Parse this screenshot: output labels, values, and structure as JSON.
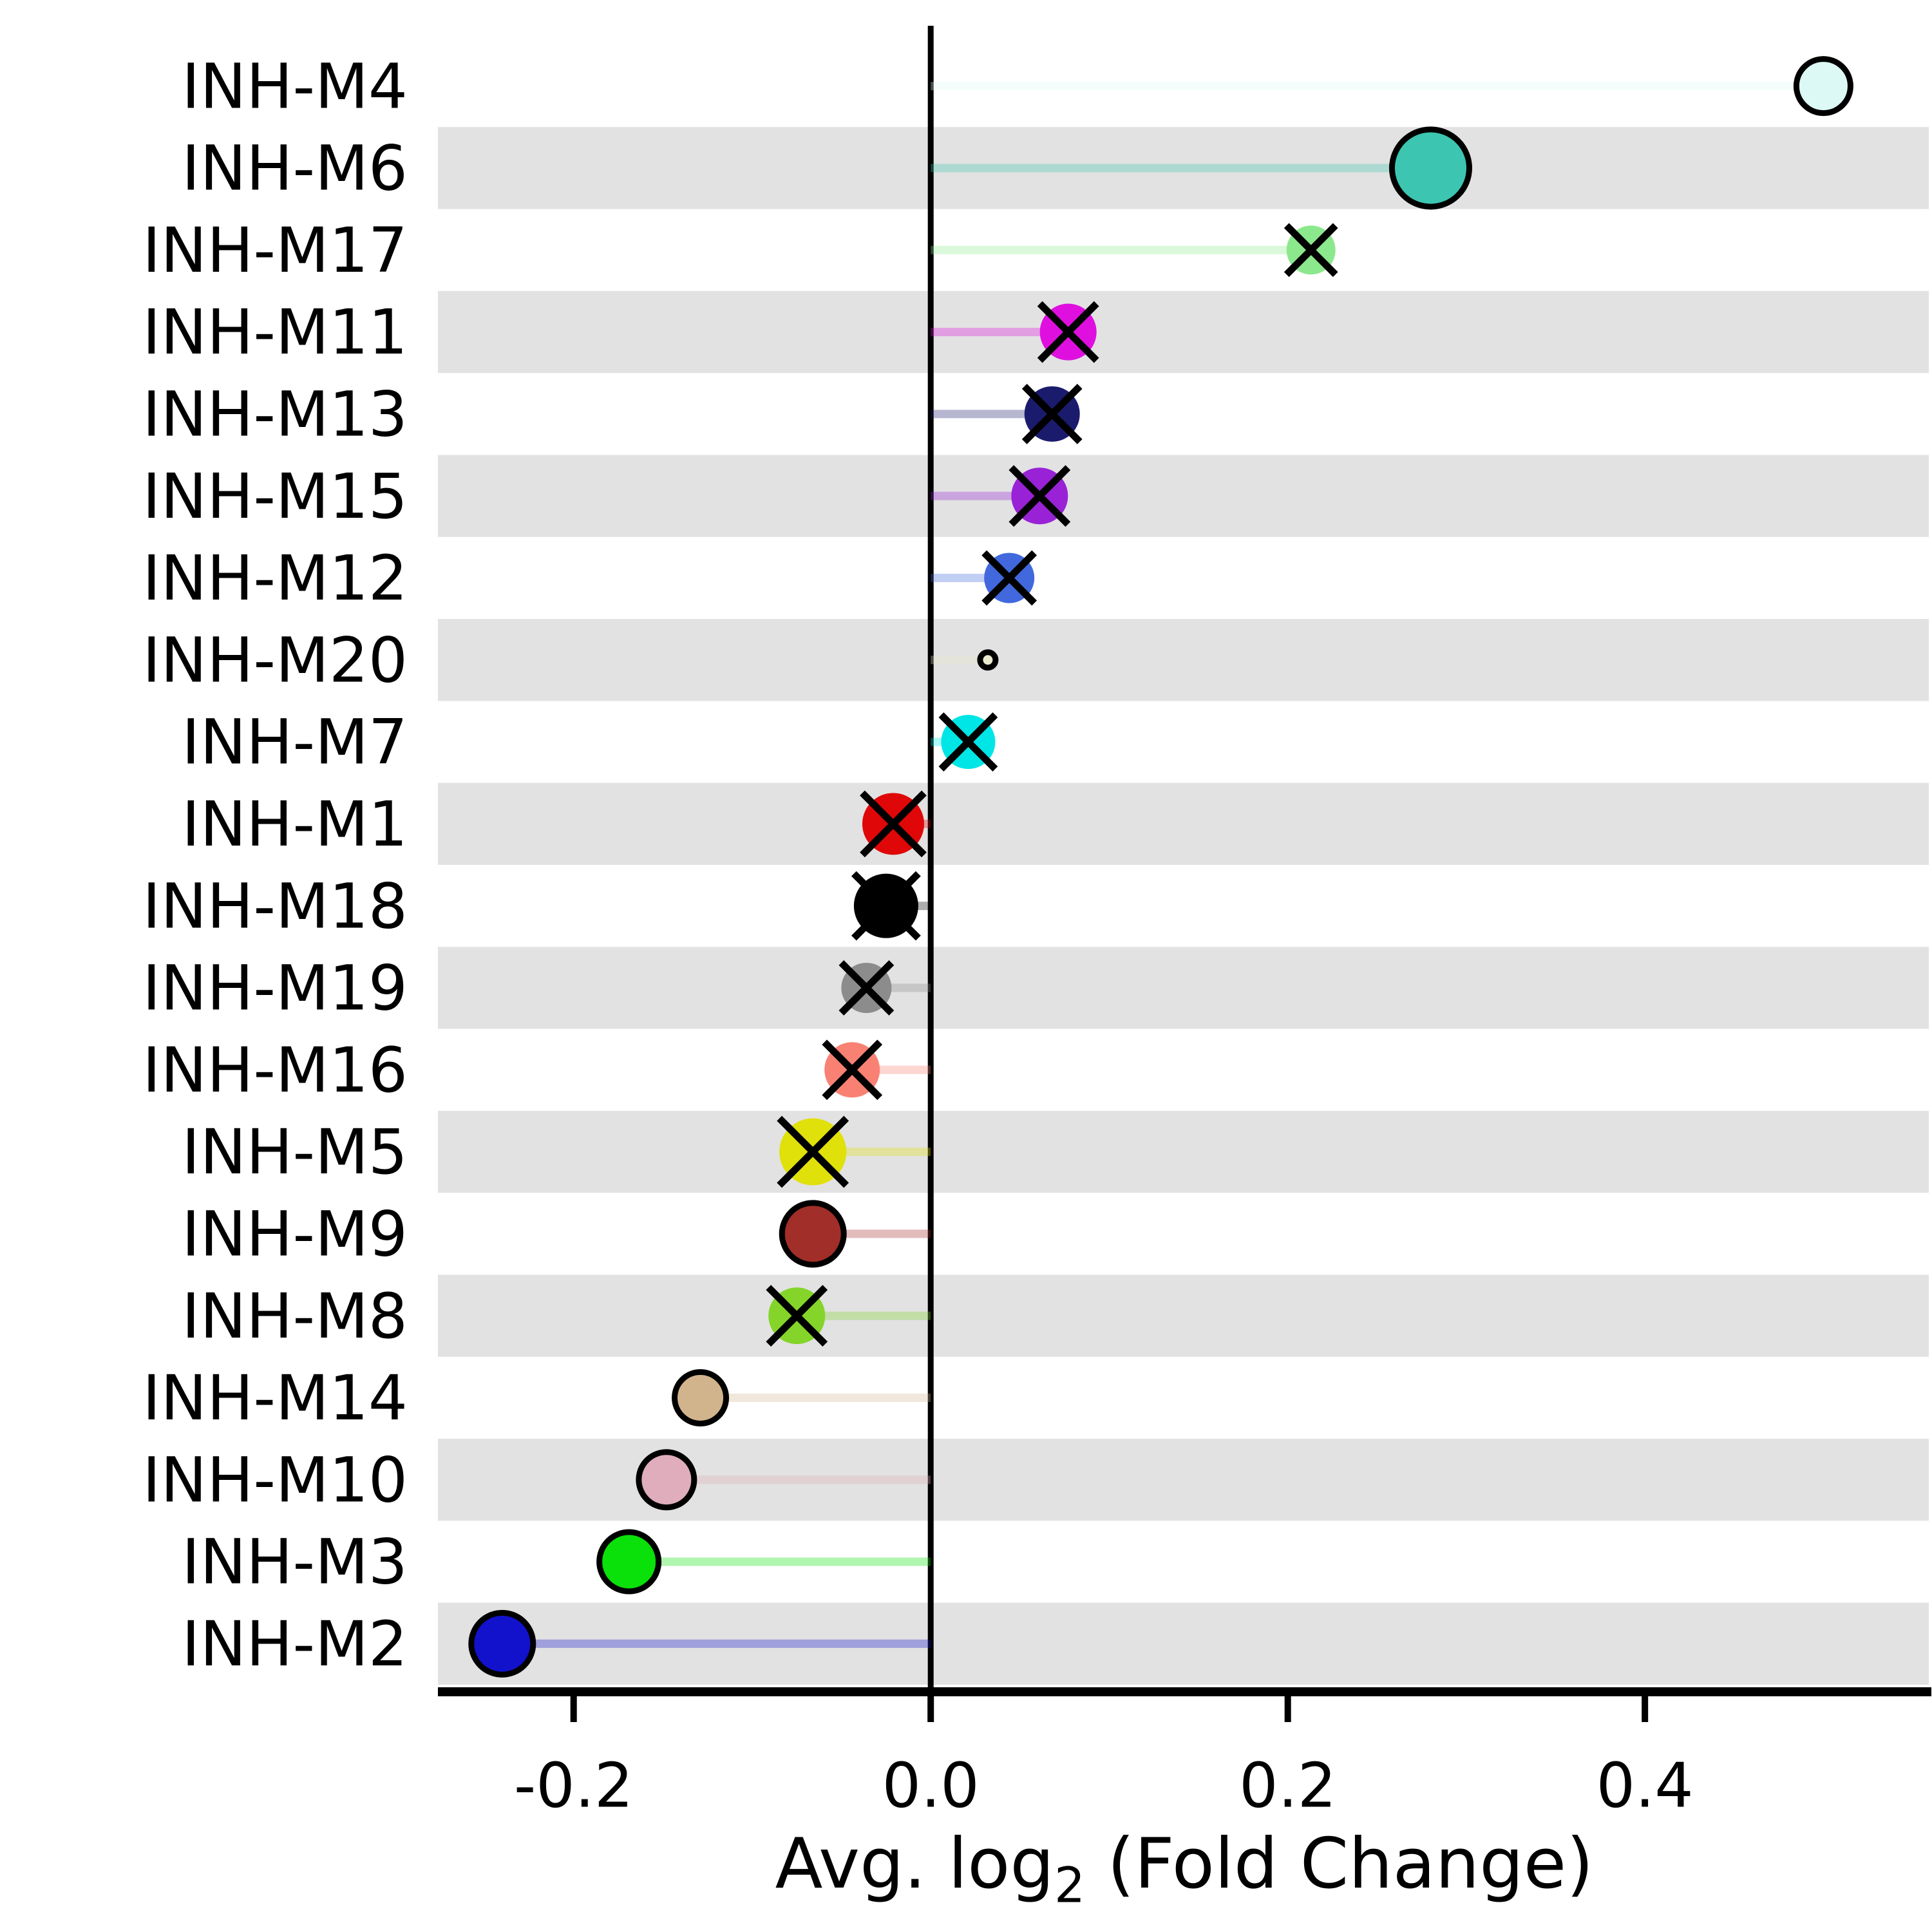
{
  "chart_data": {
    "type": "scatter",
    "variant": "lollipop-dot-plot",
    "title": "",
    "xlabel_parts": {
      "prefix": "Avg. log",
      "sub": "2",
      "suffix": " (Fold Change)"
    },
    "ylabel": "",
    "xlim": [
      -0.276,
      0.559
    ],
    "xticks": [
      -0.2,
      0.0,
      0.2,
      0.4
    ],
    "xtick_labels": [
      "-0.2",
      "0.0",
      "0.2",
      "0.4"
    ],
    "zero_line": 0.0,
    "grid": false,
    "legend_position": "none",
    "band_color": "#e2e2e2",
    "axis_color": "#000000",
    "stem_opacity": 0.32,
    "categories": [
      "INH-M4",
      "INH-M6",
      "INH-M17",
      "INH-M11",
      "INH-M13",
      "INH-M15",
      "INH-M12",
      "INH-M20",
      "INH-M7",
      "INH-M1",
      "INH-M18",
      "INH-M19",
      "INH-M16",
      "INH-M5",
      "INH-M9",
      "INH-M8",
      "INH-M14",
      "INH-M10",
      "INH-M3",
      "INH-M2"
    ],
    "points": [
      {
        "label": "INH-M4",
        "value": 0.5,
        "color": "#ddf9f6",
        "marker": "circle-edge",
        "r": 42
      },
      {
        "label": "INH-M6",
        "value": 0.28,
        "color": "#3cc6b2",
        "marker": "circle-edge",
        "r": 60
      },
      {
        "label": "INH-M17",
        "value": 0.213,
        "color": "#8ce88c",
        "marker": "circle-x",
        "r": 38
      },
      {
        "label": "INH-M11",
        "value": 0.077,
        "color": "#df10df",
        "marker": "circle-x",
        "r": 44
      },
      {
        "label": "INH-M13",
        "value": 0.068,
        "color": "#1b1b6e",
        "marker": "circle-x",
        "r": 43
      },
      {
        "label": "INH-M15",
        "value": 0.061,
        "color": "#9922d6",
        "marker": "circle-x",
        "r": 44
      },
      {
        "label": "INH-M12",
        "value": 0.044,
        "color": "#4169dd",
        "marker": "circle-x",
        "r": 39
      },
      {
        "label": "INH-M20",
        "value": 0.032,
        "color": "#e9e9cc",
        "marker": "circle-edge",
        "r": 12
      },
      {
        "label": "INH-M7",
        "value": 0.021,
        "color": "#00e5e5",
        "marker": "circle-x",
        "r": 42
      },
      {
        "label": "INH-M1",
        "value": -0.021,
        "color": "#df0707",
        "marker": "circle-x",
        "r": 48
      },
      {
        "label": "INH-M18",
        "value": -0.025,
        "color": "#000000",
        "marker": "circle-x",
        "r": 50
      },
      {
        "label": "INH-M19",
        "value": -0.036,
        "color": "#8c8c8c",
        "marker": "circle-x",
        "r": 39
      },
      {
        "label": "INH-M16",
        "value": -0.044,
        "color": "#f98173",
        "marker": "circle-x",
        "r": 43
      },
      {
        "label": "INH-M5",
        "value": -0.066,
        "color": "#e0e00a",
        "marker": "circle-x",
        "r": 52
      },
      {
        "label": "INH-M9",
        "value": -0.066,
        "color": "#a12e28",
        "marker": "circle-edge",
        "r": 48
      },
      {
        "label": "INH-M8",
        "value": -0.075,
        "color": "#84d42a",
        "marker": "circle-x",
        "r": 44
      },
      {
        "label": "INH-M14",
        "value": -0.129,
        "color": "#d2b48c",
        "marker": "circle-edge",
        "r": 40
      },
      {
        "label": "INH-M10",
        "value": -0.148,
        "color": "#dfadbb",
        "marker": "circle-edge",
        "r": 43
      },
      {
        "label": "INH-M3",
        "value": -0.169,
        "color": "#0ae00a",
        "marker": "circle-edge",
        "r": 46
      },
      {
        "label": "INH-M2",
        "value": -0.24,
        "color": "#1212cc",
        "marker": "circle-edge",
        "r": 48
      }
    ]
  }
}
